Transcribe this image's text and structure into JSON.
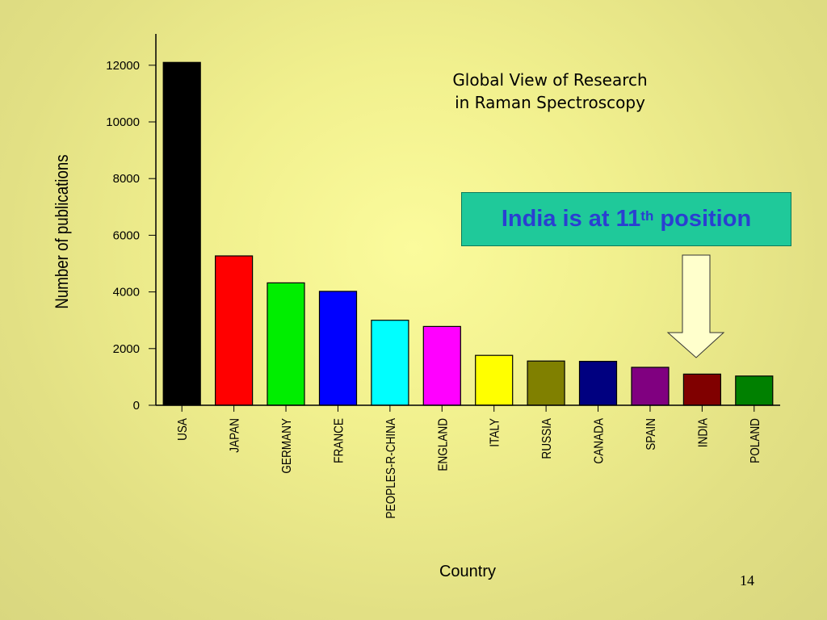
{
  "chart_data": {
    "type": "bar",
    "title": "Global View of Research in Raman Spectroscopy",
    "title_lines": [
      "Global View of Research",
      "in Raman Spectroscopy"
    ],
    "xlabel": "Country",
    "ylabel": "Number of publications",
    "ylim": [
      0,
      13000
    ],
    "yticks": [
      0,
      2000,
      4000,
      6000,
      8000,
      10000,
      12000
    ],
    "grid": false,
    "categories": [
      "USA",
      "JAPAN",
      "GERMANY",
      "FRANCE",
      "PEOPLES-R-CHINA",
      "ENGLAND",
      "ITALY",
      "RUSSIA",
      "CANADA",
      "SPAIN",
      "INDIA",
      "POLAND"
    ],
    "values": [
      12100,
      5270,
      4320,
      4020,
      3000,
      2780,
      1760,
      1560,
      1550,
      1340,
      1100,
      1030
    ],
    "bar_colors": [
      "#000000",
      "#ff0000",
      "#00ee00",
      "#0000ff",
      "#00ffff",
      "#ff00ff",
      "#ffff00",
      "#808000",
      "#000080",
      "#800080",
      "#800000",
      "#008000"
    ]
  },
  "callout": {
    "prefix": "India is at 11",
    "superscript": "th",
    "suffix": " position"
  },
  "page_number": "14",
  "colors": {
    "callout_bg": "#1fc99a",
    "callout_text": "#2a3fd1",
    "arrow_fill": "#ffffcc"
  }
}
